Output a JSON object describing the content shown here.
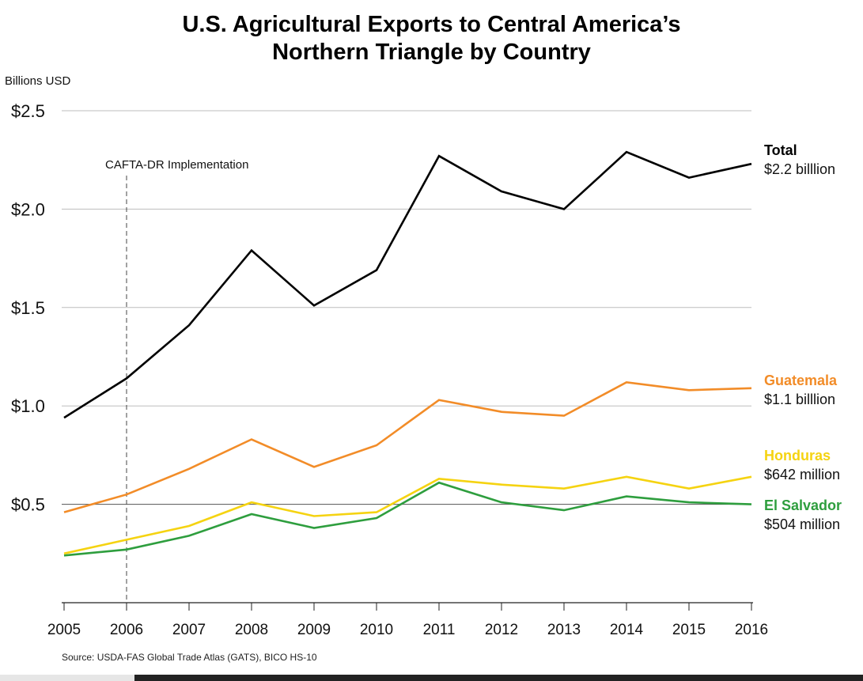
{
  "title_line1": "U.S. Agricultural Exports to Central America’s",
  "title_line2": "Northern Triangle by Country",
  "source": "Source: USDA-FAS Global Trade Atlas (GATS), BICO HS-10",
  "chart_data": {
    "type": "line",
    "ylabel": "Billions USD",
    "ylim": [
      0,
      2.5
    ],
    "y_ticks": [
      {
        "value": 0.5,
        "label": "$0.5"
      },
      {
        "value": 1.0,
        "label": "$1.0"
      },
      {
        "value": 1.5,
        "label": "$1.5"
      },
      {
        "value": 2.0,
        "label": "$2.0"
      },
      {
        "value": 2.5,
        "label": "$2.5"
      }
    ],
    "x": [
      "2005",
      "2006",
      "2007",
      "2008",
      "2009",
      "2010",
      "2011",
      "2012",
      "2013",
      "2014",
      "2015",
      "2016"
    ],
    "grid": true,
    "annotation": {
      "x": "2006",
      "text": "CAFTA-DR Implementation"
    },
    "series": [
      {
        "name": "Total",
        "end_label": "$2.2 billlion",
        "color": "#000000",
        "values": [
          0.94,
          1.14,
          1.41,
          1.79,
          1.51,
          1.69,
          2.27,
          2.09,
          2.0,
          2.29,
          2.16,
          2.23
        ]
      },
      {
        "name": "Guatemala",
        "end_label": "$1.1 billlion",
        "color": "#f28c28",
        "values": [
          0.46,
          0.55,
          0.68,
          0.83,
          0.69,
          0.8,
          1.03,
          0.97,
          0.95,
          1.12,
          1.08,
          1.09
        ]
      },
      {
        "name": "Honduras",
        "end_label": "$642 million",
        "color": "#f5d311",
        "values": [
          0.25,
          0.32,
          0.39,
          0.51,
          0.44,
          0.46,
          0.63,
          0.6,
          0.58,
          0.64,
          0.58,
          0.64
        ]
      },
      {
        "name": "El Salvador",
        "end_label": "$504 million",
        "color": "#2e9e3e",
        "values": [
          0.24,
          0.27,
          0.34,
          0.45,
          0.38,
          0.43,
          0.61,
          0.51,
          0.47,
          0.54,
          0.51,
          0.5
        ]
      }
    ]
  }
}
